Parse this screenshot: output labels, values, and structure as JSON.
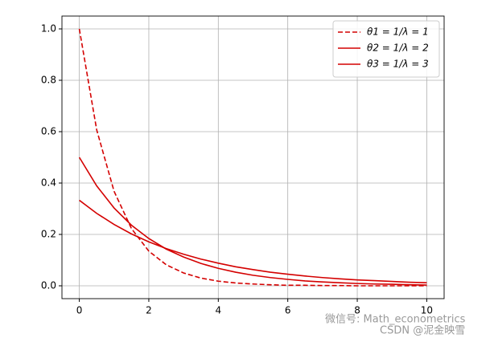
{
  "chart_data": {
    "type": "line",
    "x": [
      0,
      0.5,
      1,
      1.5,
      2,
      2.5,
      3,
      3.5,
      4,
      4.5,
      5,
      5.5,
      6,
      6.5,
      7,
      7.5,
      8,
      8.5,
      9,
      9.5,
      10
    ],
    "series": [
      {
        "name": "θ1 = 1/λ = 1",
        "color": "#d40000",
        "linestyle": "dashed",
        "values": [
          1,
          0.607,
          0.368,
          0.223,
          0.135,
          0.082,
          0.05,
          0.03,
          0.018,
          0.011,
          0.007,
          0.004,
          0.002,
          0.002,
          0.001,
          0.001,
          0,
          0,
          0,
          0,
          0
        ]
      },
      {
        "name": "θ2 = 1/λ = 2",
        "color": "#d40000",
        "linestyle": "solid",
        "values": [
          0.5,
          0.389,
          0.303,
          0.236,
          0.184,
          0.143,
          0.112,
          0.087,
          0.068,
          0.053,
          0.041,
          0.032,
          0.025,
          0.019,
          0.015,
          0.012,
          0.009,
          0.007,
          0.006,
          0.004,
          0.003
        ]
      },
      {
        "name": "θ3 = 1/λ = 3",
        "color": "#d40000",
        "linestyle": "solid",
        "values": [
          0.333,
          0.282,
          0.239,
          0.202,
          0.171,
          0.145,
          0.123,
          0.104,
          0.088,
          0.074,
          0.063,
          0.053,
          0.045,
          0.038,
          0.032,
          0.027,
          0.023,
          0.02,
          0.017,
          0.014,
          0.012
        ]
      }
    ],
    "xlim": [
      -0.5,
      10.5
    ],
    "ylim": [
      -0.05,
      1.05
    ],
    "xticks": [
      0,
      2,
      4,
      6,
      8,
      10
    ],
    "yticks": [
      {
        "value": 0,
        "label": "0.0"
      },
      0.2,
      0.4,
      0.6,
      0.8,
      {
        "value": 1,
        "label": "1.0"
      }
    ],
    "grid": true,
    "legend": "upper right",
    "annotations": [
      "微信号: Math_econometrics",
      "CSDN @泥金映雪"
    ]
  }
}
